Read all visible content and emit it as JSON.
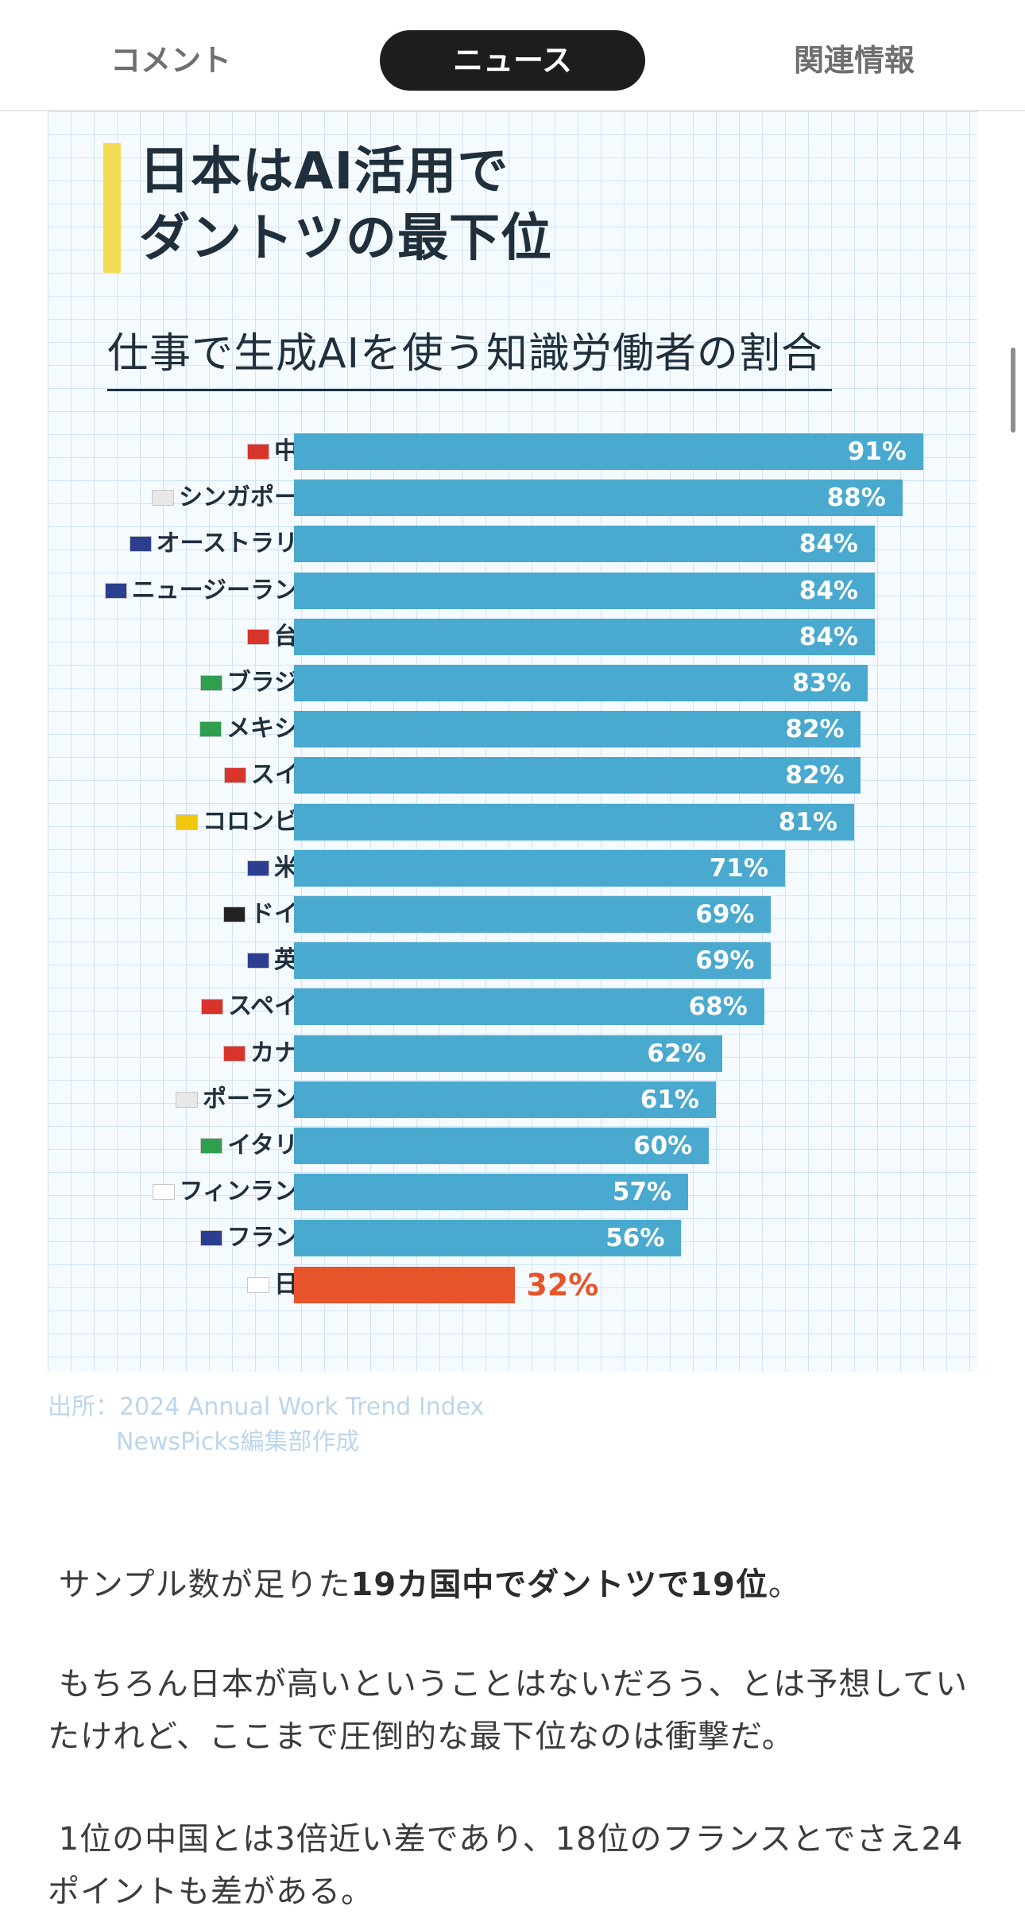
{
  "tabs": [
    {
      "label": "コメント",
      "active": false
    },
    {
      "label": "ニュース",
      "active": true
    },
    {
      "label": "関連情報",
      "active": false
    }
  ],
  "infographic": {
    "headline_line1": "日本はAI活用で",
    "headline_line2": "ダントツの最下位",
    "source_line1": "出所：2024 Annual Work Trend Index",
    "source_line2": "NewsPicks編集部作成"
  },
  "chart_data": {
    "type": "bar",
    "orientation": "horizontal",
    "title": "仕事で生成AIを使う知識労働者の割合",
    "unit": "%",
    "xlim": [
      0,
      100
    ],
    "categories": [
      "中国",
      "シンガポール",
      "オーストラリア",
      "ニュージーランド",
      "台湾",
      "ブラジル",
      "メキシコ",
      "スイス",
      "コロンビア",
      "米国",
      "ドイツ",
      "英国",
      "スペイン",
      "カナダ",
      "ポーランド",
      "イタリア",
      "フィンランド",
      "フランス",
      "日本"
    ],
    "values": [
      91,
      88,
      84,
      84,
      84,
      83,
      82,
      82,
      81,
      71,
      69,
      69,
      68,
      62,
      61,
      60,
      57,
      56,
      32
    ],
    "labels": [
      "91%",
      "88%",
      "84%",
      "84%",
      "84%",
      "83%",
      "82%",
      "82%",
      "81%",
      "71%",
      "69%",
      "69%",
      "68%",
      "62%",
      "61%",
      "60%",
      "57%",
      "56%",
      "32%"
    ],
    "highlight": "日本",
    "colors": {
      "default": "#49a9cf",
      "highlight": "#e8542a"
    }
  },
  "article": {
    "p1_pre": "サンプル数が足りた",
    "p1_bold": "19カ国中でダントツで19位",
    "p1_post": "。",
    "p2": "もちろん日本が高いということはないだろう、とは予想していたけれど、ここまで圧倒的な最下位なのは衝撃だ。",
    "p3": "1位の中国とは3倍近い差であり、18位のフランスとでさえ24ポイントも差がある。"
  }
}
